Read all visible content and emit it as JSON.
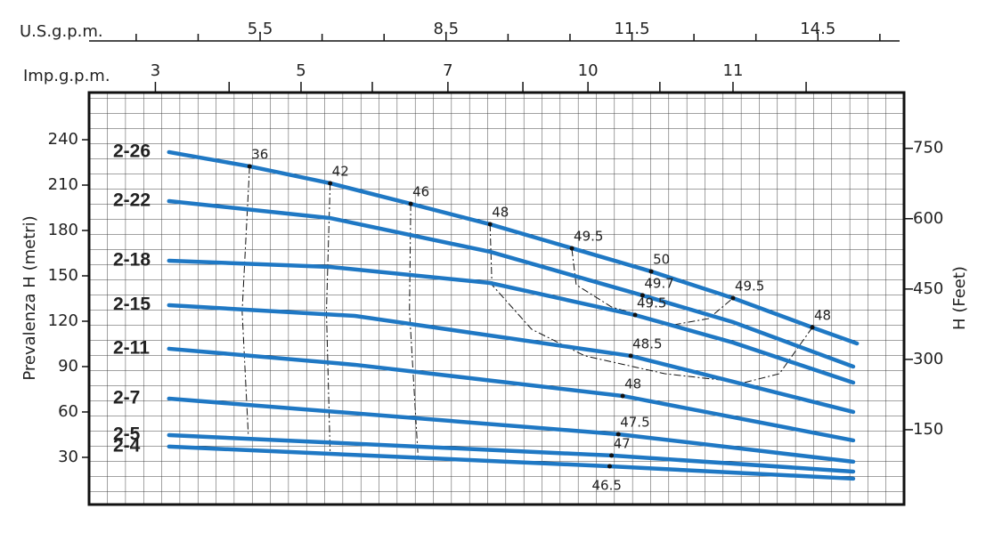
{
  "chart_data": {
    "type": "line",
    "xlabel": "U.S.g.p.m.",
    "x2label": "Imp.g.p.m.",
    "ylabel": "Prevalenza H (metri)",
    "y2label": "H (Feet)",
    "xlim": [
      2.74,
      15.89
    ],
    "xticks": [
      5.5,
      8.5,
      11.5,
      14.5
    ],
    "x_minor_ticks": [
      3.5,
      4.5,
      6.5,
      7.5,
      9.5,
      10.5,
      12.5,
      13.5,
      15.5
    ],
    "x2ticks": [
      {
        "value": 3.81,
        "label": "3"
      },
      {
        "value": 6.16,
        "label": "5"
      },
      {
        "value": 8.53,
        "label": "7"
      },
      {
        "value": 10.79,
        "label": "10"
      },
      {
        "value": 13.13,
        "label": "11"
      }
    ],
    "x2_minor_ticks": [
      5.0,
      7.31,
      9.74,
      11.95,
      14.31
    ],
    "ylim": [
      -1.2,
      271.2
    ],
    "yticks": [
      30,
      60,
      90,
      120,
      150,
      180,
      210,
      240
    ],
    "y2lim": [
      -9.5,
      869
    ],
    "y2ticks": [
      150,
      300,
      450,
      600,
      750
    ],
    "grid": true,
    "series": [
      {
        "name": "2-26",
        "color": "#1f78c4",
        "x": [
          4.03,
          5.33,
          6.63,
          7.93,
          9.21,
          11.81,
          13.13,
          14.41,
          15.13
        ],
        "values": [
          231.8,
          222.4,
          211.2,
          197.6,
          184.1,
          152.9,
          135.3,
          115.9,
          105.3
        ]
      },
      {
        "name": "2-22",
        "color": "#1f78c4",
        "x": [
          4.03,
          6.63,
          9.21,
          11.67,
          13.13,
          15.07
        ],
        "values": [
          199.4,
          188.2,
          165.9,
          137.1,
          119.4,
          90.0
        ]
      },
      {
        "name": "2-18",
        "color": "#1f78c4",
        "x": [
          4.03,
          6.63,
          9.21,
          11.55,
          13.13,
          15.07
        ],
        "values": [
          160.0,
          155.9,
          145.3,
          124.1,
          105.9,
          79.4
        ]
      },
      {
        "name": "2-15",
        "color": "#1f78c4",
        "x": [
          4.03,
          7.03,
          11.48,
          15.07
        ],
        "values": [
          130.6,
          123.5,
          97.1,
          60.0
        ]
      },
      {
        "name": "2-11",
        "color": "#1f78c4",
        "x": [
          4.03,
          7.03,
          11.35,
          15.07
        ],
        "values": [
          101.8,
          91.2,
          70.6,
          41.2
        ]
      },
      {
        "name": "2-7",
        "color": "#1f78c4",
        "x": [
          4.03,
          11.28,
          15.07
        ],
        "values": [
          68.8,
          45.3,
          27.1
        ]
      },
      {
        "name": "2-5",
        "color": "#1f78c4",
        "x": [
          4.03,
          11.17,
          15.07
        ],
        "values": [
          44.7,
          31.2,
          20.6
        ]
      },
      {
        "name": "2-4",
        "color": "#1f78c4",
        "x": [
          4.03,
          11.14,
          15.07
        ],
        "values": [
          37.1,
          24.1,
          15.9
        ]
      }
    ],
    "efficiency": {
      "values": [
        36,
        42,
        46,
        48,
        49.5,
        50,
        49.7,
        49.5,
        48.5,
        48,
        47.5,
        47,
        46.5,
        49.5,
        48
      ],
      "x": [
        5.33,
        6.63,
        7.93,
        9.21,
        10.53,
        11.81,
        11.67,
        11.55,
        11.48,
        11.35,
        11.28,
        11.17,
        11.14,
        13.13,
        14.41
      ],
      "y": [
        222.4,
        211.2,
        197.6,
        184.1,
        168.2,
        152.9,
        137.1,
        124.1,
        97.1,
        70.6,
        45.3,
        31.2,
        24.1,
        135.3,
        115.9
      ]
    },
    "efficiency_curves": [
      {
        "x": [
          5.33,
          5.21,
          5.31
        ],
        "y": [
          222.4,
          126.5,
          44.1
        ]
      },
      {
        "x": [
          6.63,
          6.57,
          6.63
        ],
        "y": [
          211.2,
          126.5,
          32.4
        ]
      },
      {
        "x": [
          7.93,
          7.91,
          8.05
        ],
        "y": [
          197.6,
          126.5,
          29.4
        ]
      },
      {
        "x": [
          9.21,
          9.24,
          9.88,
          10.74,
          12.03,
          13.31,
          13.88,
          14.41
        ],
        "y": [
          184.1,
          144.1,
          114.7,
          97.1,
          85.3,
          79.4,
          85.3,
          115.9
        ]
      },
      {
        "x": [
          10.53,
          10.6,
          11.17,
          12.17,
          12.74,
          13.13
        ],
        "y": [
          167.6,
          144.1,
          129.4,
          117.6,
          121.8,
          135.3
        ]
      }
    ]
  }
}
